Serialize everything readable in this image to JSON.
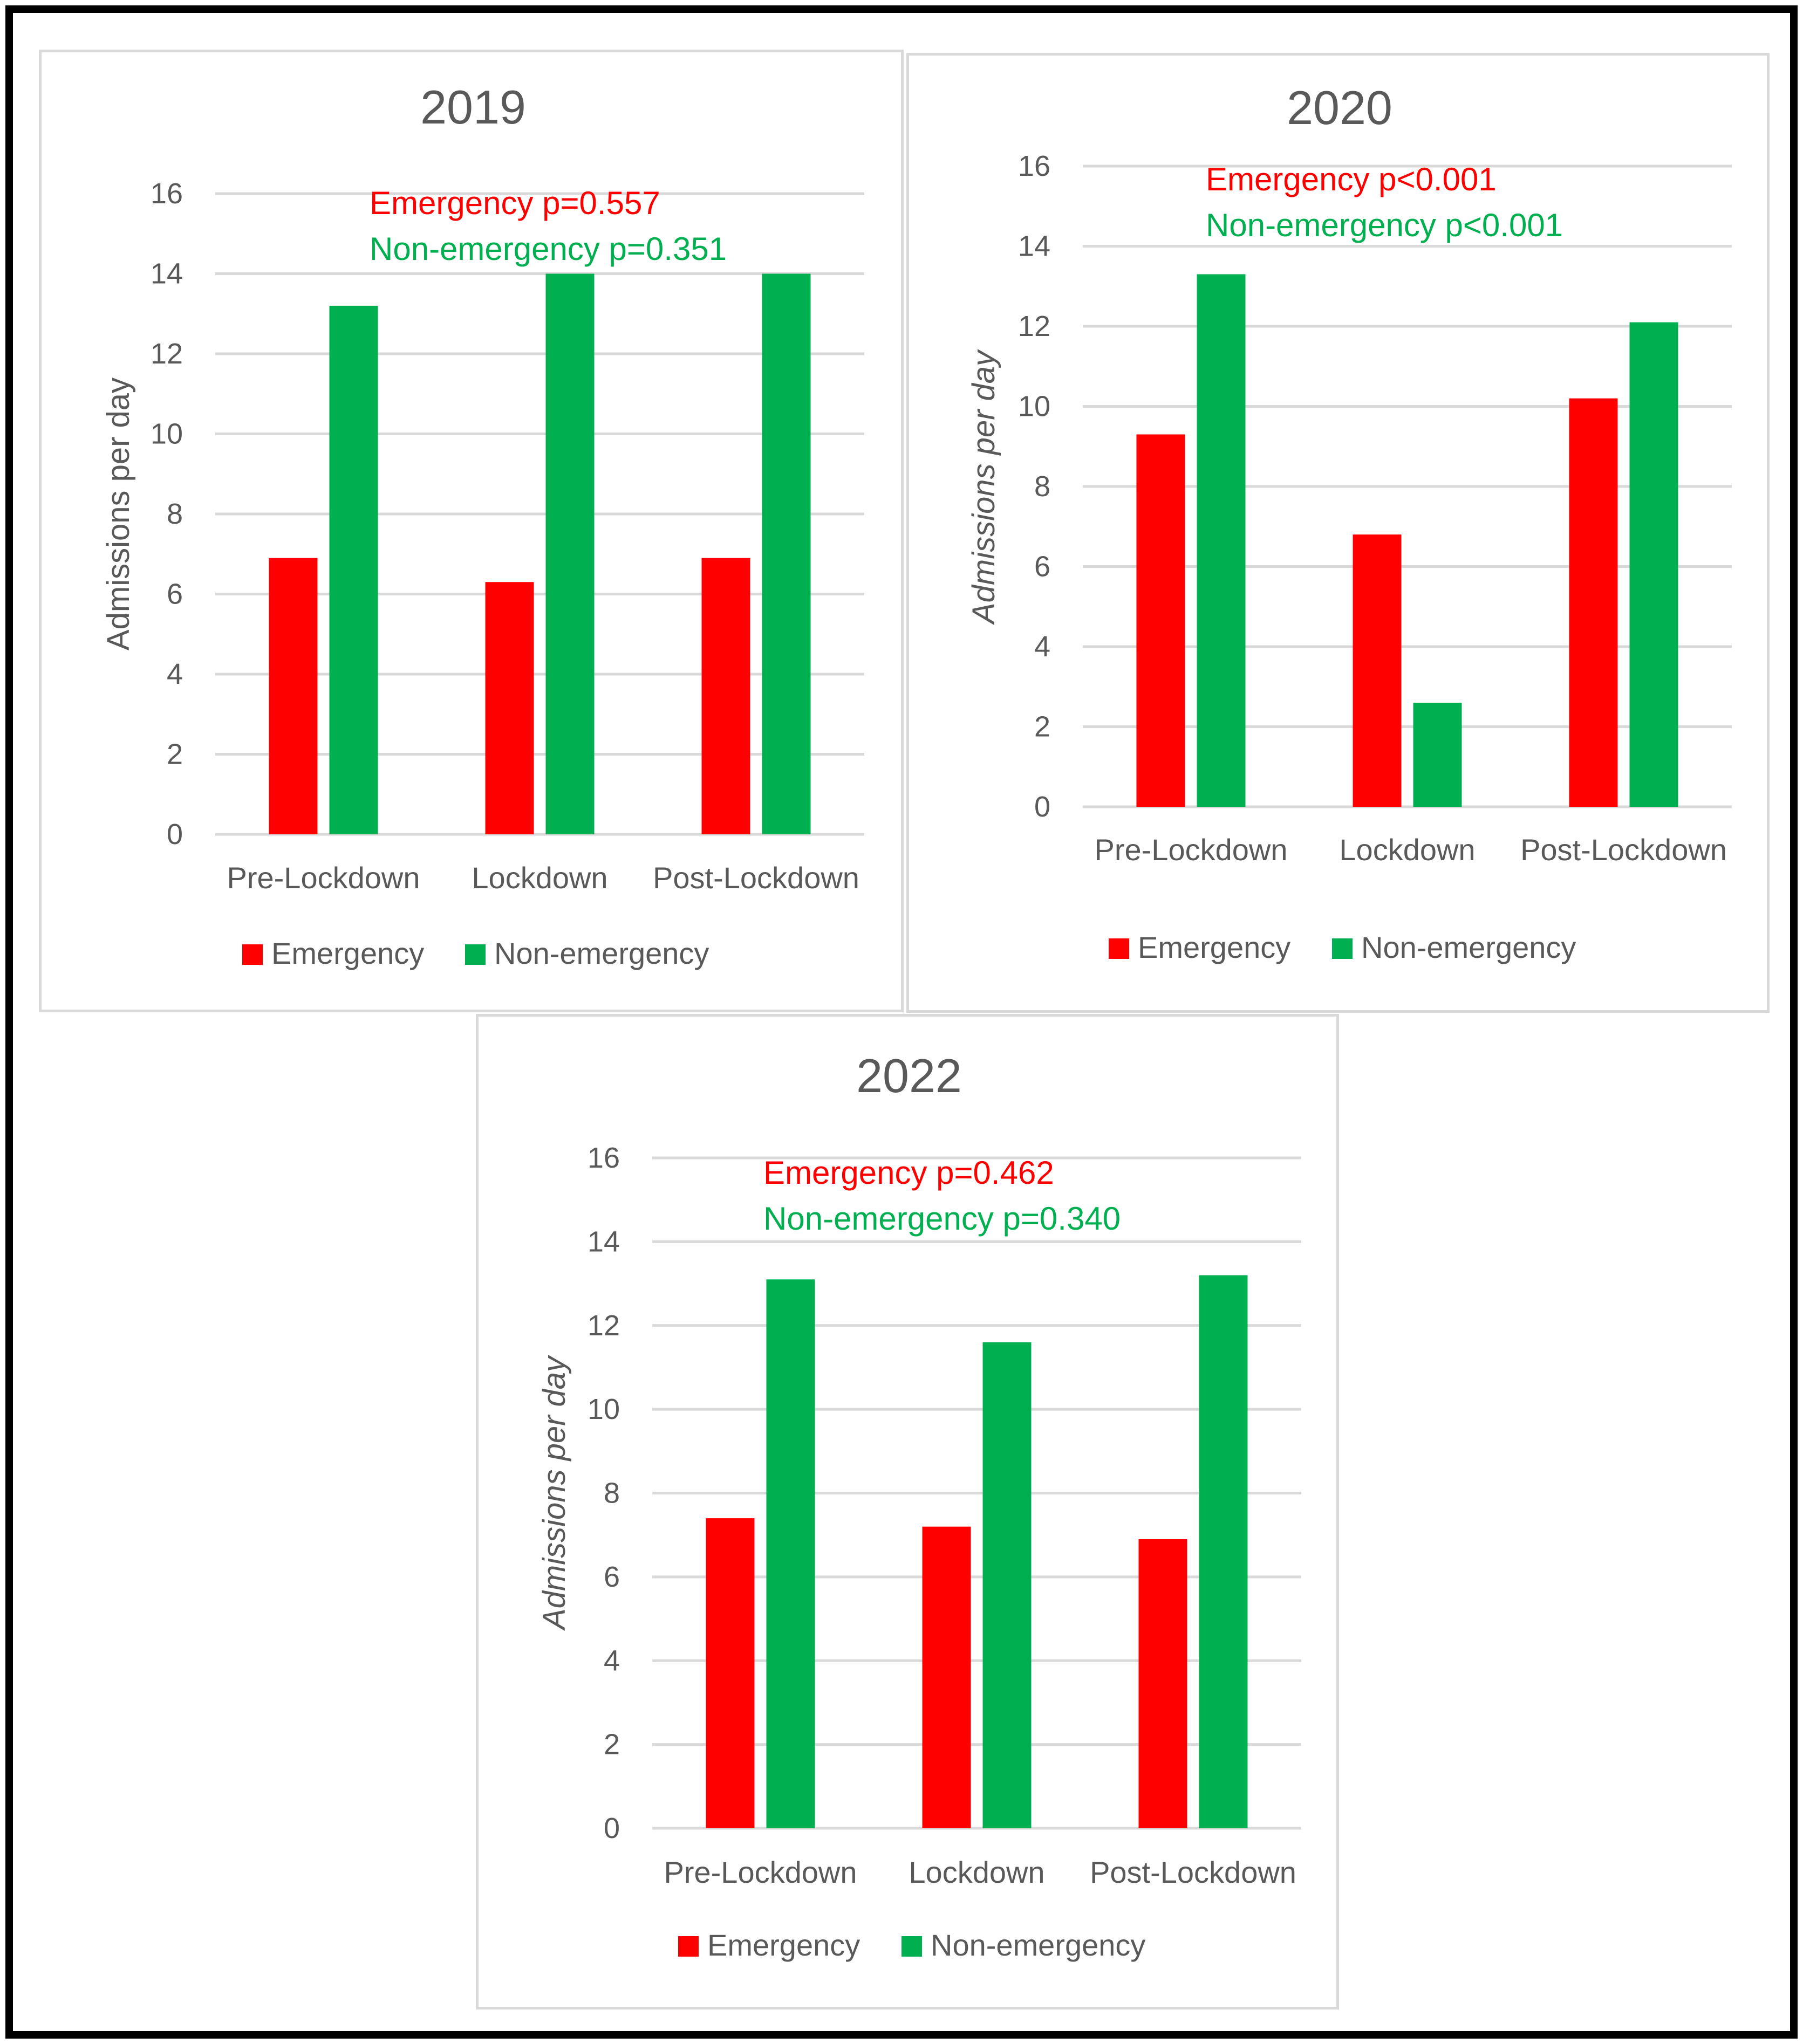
{
  "chart_data": [
    {
      "type": "bar",
      "title": "2019",
      "xlabel": "",
      "ylabel": "Admissions per day",
      "ylabel_italic": false,
      "ylim": [
        0,
        16
      ],
      "yticks": [
        "0",
        "2",
        "4",
        "6",
        "8",
        "10",
        "12",
        "14",
        "16"
      ],
      "categories": [
        "Pre-Lockdown",
        "Lockdown",
        "Post-Lockdown"
      ],
      "series": [
        {
          "name": "Emergency",
          "color": "#ff0000",
          "values": [
            6.9,
            6.3,
            6.9
          ]
        },
        {
          "name": "Non-emergency",
          "color": "#00b050",
          "values": [
            13.2,
            14.0,
            14.0
          ]
        }
      ],
      "annotations": [
        {
          "text": "Emergency p=0.557",
          "color": "#ff0000"
        },
        {
          "text": "Non-emergency p=0.351",
          "color": "#00b050"
        }
      ],
      "legend": [
        "Emergency",
        "Non-emergency"
      ],
      "legend_position": "bottom",
      "grid": true
    },
    {
      "type": "bar",
      "title": "2020",
      "xlabel": "",
      "ylabel": "Admissions per day",
      "ylabel_italic": true,
      "ylim": [
        0,
        16
      ],
      "yticks": [
        "0",
        "2",
        "4",
        "6",
        "8",
        "10",
        "12",
        "14",
        "16"
      ],
      "categories": [
        "Pre-Lockdown",
        "Lockdown",
        "Post-Lockdown"
      ],
      "series": [
        {
          "name": "Emergency",
          "color": "#ff0000",
          "values": [
            9.3,
            6.8,
            10.2
          ]
        },
        {
          "name": "Non-emergency",
          "color": "#00b050",
          "values": [
            13.3,
            2.6,
            12.1
          ]
        }
      ],
      "annotations": [
        {
          "text": "Emergency p<0.001",
          "color": "#ff0000"
        },
        {
          "text": "Non-emergency p<0.001",
          "color": "#00b050"
        }
      ],
      "legend": [
        "Emergency",
        "Non-emergency"
      ],
      "legend_position": "bottom",
      "grid": true
    },
    {
      "type": "bar",
      "title": "2022",
      "xlabel": "",
      "ylabel": "Admissions per day",
      "ylabel_italic": true,
      "ylim": [
        0,
        16
      ],
      "yticks": [
        "0",
        "2",
        "4",
        "6",
        "8",
        "10",
        "12",
        "14",
        "16"
      ],
      "categories": [
        "Pre-Lockdown",
        "Lockdown",
        "Post-Lockdown"
      ],
      "series": [
        {
          "name": "Emergency",
          "color": "#ff0000",
          "values": [
            7.4,
            7.2,
            6.9
          ]
        },
        {
          "name": "Non-emergency",
          "color": "#00b050",
          "values": [
            13.1,
            11.6,
            13.2
          ]
        }
      ],
      "annotations": [
        {
          "text": "Emergency p=0.462",
          "color": "#ff0000"
        },
        {
          "text": "Non-emergency p=0.340",
          "color": "#00b050"
        }
      ],
      "legend": [
        "Emergency",
        "Non-emergency"
      ],
      "legend_position": "bottom",
      "grid": true
    }
  ]
}
